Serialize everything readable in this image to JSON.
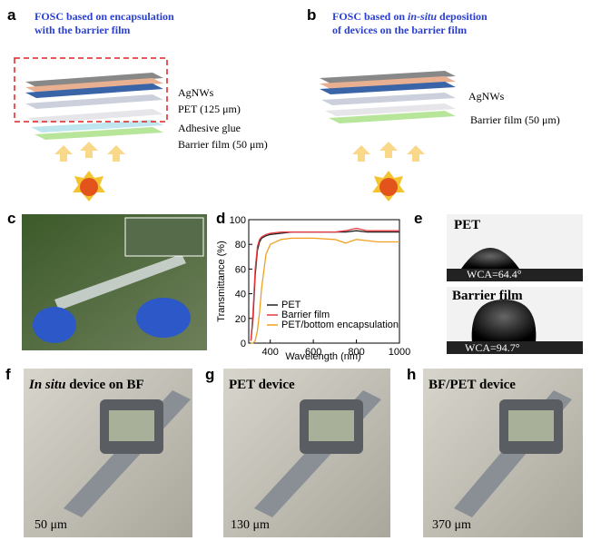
{
  "panels": {
    "a": {
      "label": "a",
      "title": [
        "FOSC based on encapsulation",
        "with the barrier film"
      ],
      "layers": [
        "AgNWs",
        "PET (125 μm)",
        "Adhesive glue",
        "Barrier film (50 μm)"
      ]
    },
    "b": {
      "label": "b",
      "title_start": "FOSC based on ",
      "title_italic": "in-situ",
      "title_end": " deposition",
      "title_line2": "of devices on the barrier film",
      "layers": [
        "AgNWs",
        "Barrier film (50 μm)"
      ]
    },
    "c": {
      "label": "c"
    },
    "d": {
      "label": "d"
    },
    "e": {
      "label": "e",
      "samples": [
        {
          "name": "PET",
          "wca": "WCA=64.4°"
        },
        {
          "name": "Barrier film",
          "wca": "WCA=94.7°"
        }
      ]
    },
    "f": {
      "label": "f",
      "title_italic": "In situ",
      "title_end": " device on BF",
      "thickness": "50 μm"
    },
    "g": {
      "label": "g",
      "title": "PET device",
      "thickness": "130 μm"
    },
    "h": {
      "label": "h",
      "title": "BF/PET device",
      "thickness": "370 μm"
    }
  },
  "chart_data": {
    "type": "line",
    "x_label": "Wavelength (nm)",
    "y_label": "Transmittance (%)",
    "x": [
      310,
      320,
      330,
      340,
      350,
      360,
      380,
      400,
      450,
      500,
      600,
      700,
      750,
      800,
      850,
      900,
      1000
    ],
    "series": [
      {
        "name": "PET",
        "color": "#222222",
        "values": [
          2,
          20,
          55,
          75,
          82,
          85,
          87,
          88,
          89,
          90,
          90,
          90,
          90,
          91,
          90,
          90,
          90
        ]
      },
      {
        "name": "Barrier film",
        "color": "#e8383d",
        "values": [
          2,
          25,
          60,
          78,
          84,
          86,
          88,
          89,
          90,
          90,
          90,
          90,
          91,
          93,
          91,
          91,
          91
        ]
      },
      {
        "name": "PET/bottom encapsulation",
        "color": "#f0a020",
        "values": [
          0,
          0,
          2,
          10,
          25,
          45,
          72,
          80,
          84,
          85,
          85,
          84,
          81,
          84,
          83,
          82,
          82
        ]
      }
    ],
    "xlim": [
      300,
      1000
    ],
    "xticks": [
      400,
      600,
      800,
      1000
    ],
    "ylim": [
      0,
      100
    ],
    "yticks": [
      0,
      20,
      40,
      60,
      80,
      100
    ],
    "legend": "lower right"
  }
}
